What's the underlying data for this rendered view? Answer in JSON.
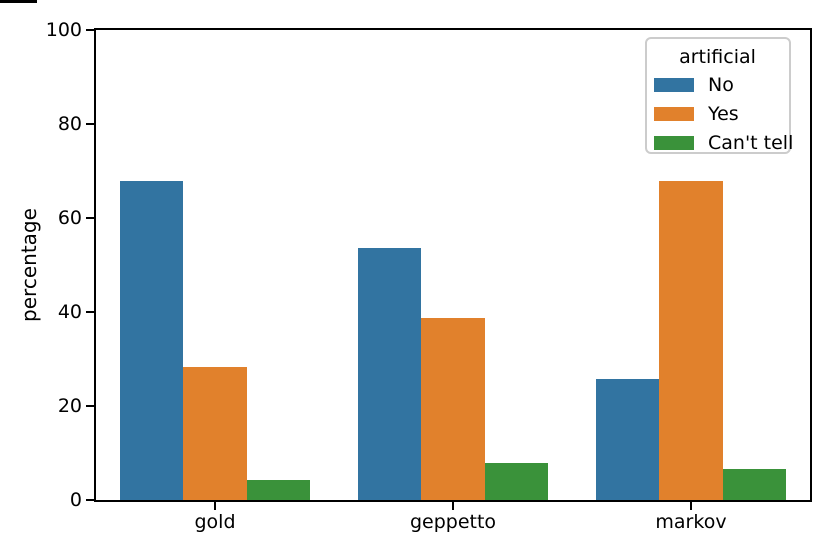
{
  "chart_data": {
    "type": "bar",
    "title": "",
    "categories": [
      "gold",
      "geppetto",
      "markov"
    ],
    "series": [
      {
        "name": "No",
        "color": "#3274a1",
        "values": [
          67.8,
          53.7,
          25.7
        ]
      },
      {
        "name": "Yes",
        "color": "#e1812c",
        "values": [
          28.2,
          38.8,
          67.9
        ]
      },
      {
        "name": "Can't tell",
        "color": "#3a923a",
        "values": [
          4.2,
          7.9,
          6.6
        ]
      }
    ],
    "xlabel": "",
    "ylabel": "percentage",
    "ylim": [
      0,
      100
    ],
    "yticks": [
      0,
      20,
      40,
      60,
      80,
      100
    ],
    "grid": false,
    "legend_title": "artificial",
    "legend_position": "upper right",
    "bar_group_width_fraction": 0.8,
    "spine_color": "#000000",
    "background_color": "#ffffff"
  }
}
